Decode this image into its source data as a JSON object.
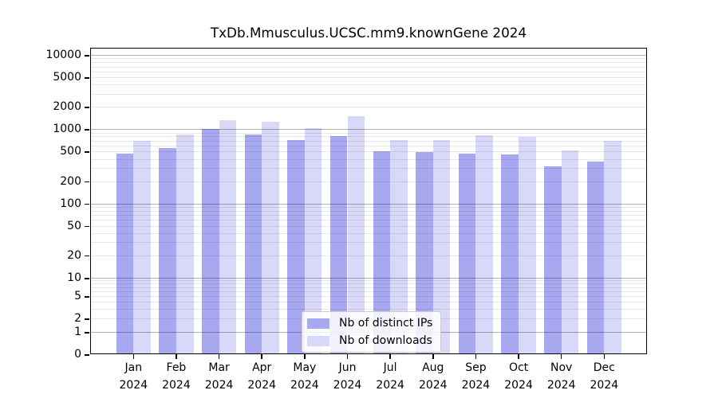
{
  "title": "TxDb.Mmusculus.UCSC.mm9.knownGene 2024",
  "chart_data": {
    "type": "bar",
    "title": "TxDb.Mmusculus.UCSC.mm9.knownGene 2024",
    "categories": [
      "Jan 2024",
      "Feb 2024",
      "Mar 2024",
      "Apr 2024",
      "May 2024",
      "Jun 2024",
      "Jul 2024",
      "Aug 2024",
      "Sep 2024",
      "Oct 2024",
      "Nov 2024",
      "Dec 2024"
    ],
    "series": [
      {
        "name": "Nb of distinct IPs",
        "color": "#a8a8f0",
        "values": [
          465,
          555,
          1010,
          845,
          710,
          800,
          505,
          490,
          470,
          455,
          320,
          370
        ]
      },
      {
        "name": "Nb of downloads",
        "color": "#d8d8f8",
        "values": [
          695,
          845,
          1330,
          1250,
          1030,
          1490,
          720,
          720,
          820,
          780,
          515,
          705
        ]
      }
    ],
    "yscale": "log",
    "ylim": [
      0,
      12500
    ],
    "y_ticks": [
      10000,
      5000,
      2000,
      1000,
      500,
      200,
      100,
      50,
      20,
      10,
      5,
      2,
      1,
      0
    ],
    "grid": "on",
    "legend_position": "lower center"
  },
  "colors": {
    "distinct_ips": "#a8a8f0",
    "downloads": "#d8d8f8",
    "grid_major": "rgba(0,0,0,0.30)",
    "grid_minor": "rgba(0,0,0,0.09)",
    "axis": "#000000",
    "background": "#ffffff",
    "legend_border": "#cccccc"
  }
}
